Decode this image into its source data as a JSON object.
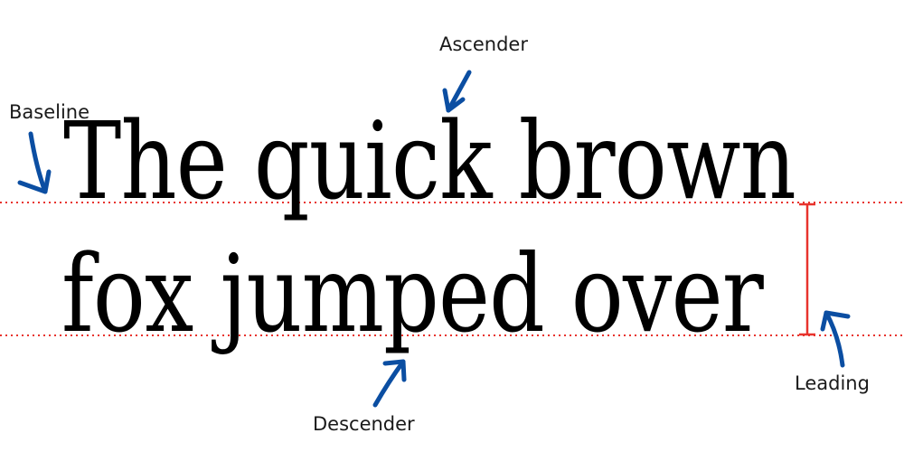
{
  "sample_lines": [
    "The quick brown",
    "fox jumped over"
  ],
  "labels": {
    "ascender": "Ascender",
    "baseline": "Baseline",
    "descender": "Descender",
    "leading": "Leading"
  },
  "colors": {
    "arrow": "#0b4ea2",
    "guide_line": "#e8332d",
    "leading_bracket": "#e8332d",
    "text": "#000000"
  },
  "icons": {
    "arrow": "curved-arrow-icon"
  }
}
